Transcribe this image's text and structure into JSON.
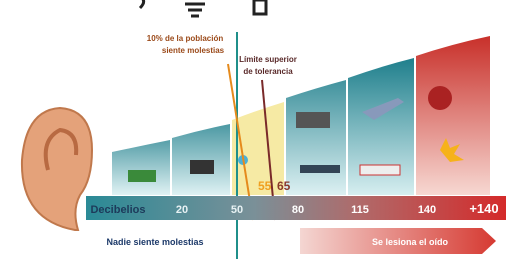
{
  "annotations": {
    "discomfort": [
      "10% de la población",
      "siente molestias"
    ],
    "tolerance": [
      "Límite superior",
      "de tolerancia"
    ],
    "level_55": "55",
    "level_65": "65"
  },
  "scale": {
    "label": "Decibelios",
    "ticks": [
      "20",
      "50",
      "80",
      "115",
      "140",
      "+140"
    ]
  },
  "footer": {
    "safe": "Nadie siente molestias",
    "harm": "Se lesiona el oído"
  }
}
